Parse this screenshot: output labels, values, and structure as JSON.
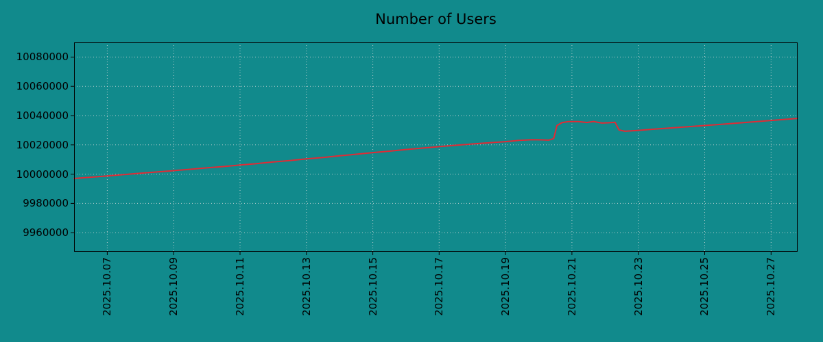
{
  "colors": {
    "background": "#118a8c",
    "line": "#e02b35",
    "grid": "#dcdcdc",
    "axis": "#000000",
    "text": "#000000"
  },
  "chart_data": {
    "type": "line",
    "title": "Number of Users",
    "xlabel": "",
    "ylabel": "",
    "grid": "dotted",
    "legend": "none",
    "x_axis": {
      "min": 6.0,
      "max": 27.8,
      "tick_values": [
        7,
        9,
        11,
        13,
        15,
        17,
        19,
        21,
        23,
        25,
        27
      ],
      "tick_labels": [
        "2025.10.07",
        "2025.10.09",
        "2025.10.11",
        "2025.10.13",
        "2025.10.15",
        "2025.10.17",
        "2025.10.19",
        "2025.10.21",
        "2025.10.23",
        "2025.10.25",
        "2025.10.27"
      ]
    },
    "y_axis": {
      "min": 9947000,
      "max": 10090000,
      "tick_values": [
        9960000,
        9980000,
        10000000,
        10020000,
        10040000,
        10060000,
        10080000
      ],
      "tick_labels": [
        "9960000",
        "9980000",
        "10000000",
        "10020000",
        "10040000",
        "10060000",
        "10080000"
      ]
    },
    "series": [
      {
        "name": "Number of Users",
        "color": "#e02b35",
        "points": [
          [
            6.0,
            9997000
          ],
          [
            6.5,
            9997900
          ],
          [
            7.0,
            9998800
          ],
          [
            7.5,
            9999700
          ],
          [
            8.0,
            10000600
          ],
          [
            8.5,
            10001500
          ],
          [
            9.0,
            10002400
          ],
          [
            9.5,
            10003300
          ],
          [
            10.0,
            10004300
          ],
          [
            10.5,
            10005200
          ],
          [
            11.0,
            10006200
          ],
          [
            11.5,
            10007200
          ],
          [
            12.0,
            10008300
          ],
          [
            12.5,
            10009300
          ],
          [
            13.0,
            10010400
          ],
          [
            13.5,
            10011400
          ],
          [
            14.0,
            10012500
          ],
          [
            14.5,
            10013600
          ],
          [
            15.0,
            10014700
          ],
          [
            15.5,
            10015700
          ],
          [
            16.0,
            10016800
          ],
          [
            16.5,
            10017800
          ],
          [
            17.0,
            10018800
          ],
          [
            17.5,
            10019700
          ],
          [
            18.0,
            10020600
          ],
          [
            18.5,
            10021400
          ],
          [
            19.0,
            10022200
          ],
          [
            19.4,
            10023100
          ],
          [
            19.8,
            10023500
          ],
          [
            20.1,
            10023400
          ],
          [
            20.3,
            10023200
          ],
          [
            20.45,
            10024300
          ],
          [
            20.55,
            10033200
          ],
          [
            20.7,
            10035200
          ],
          [
            20.9,
            10035900
          ],
          [
            21.2,
            10035900
          ],
          [
            21.45,
            10035300
          ],
          [
            21.65,
            10036000
          ],
          [
            21.9,
            10034900
          ],
          [
            22.1,
            10035100
          ],
          [
            22.3,
            10035400
          ],
          [
            22.42,
            10030200
          ],
          [
            22.6,
            10029300
          ],
          [
            23.0,
            10029900
          ],
          [
            23.5,
            10030800
          ],
          [
            24.0,
            10031600
          ],
          [
            24.5,
            10032400
          ],
          [
            25.0,
            10033200
          ],
          [
            25.5,
            10034000
          ],
          [
            26.0,
            10034900
          ],
          [
            26.5,
            10035800
          ],
          [
            27.0,
            10036700
          ],
          [
            27.4,
            10037400
          ],
          [
            27.8,
            10038100
          ]
        ]
      }
    ]
  }
}
